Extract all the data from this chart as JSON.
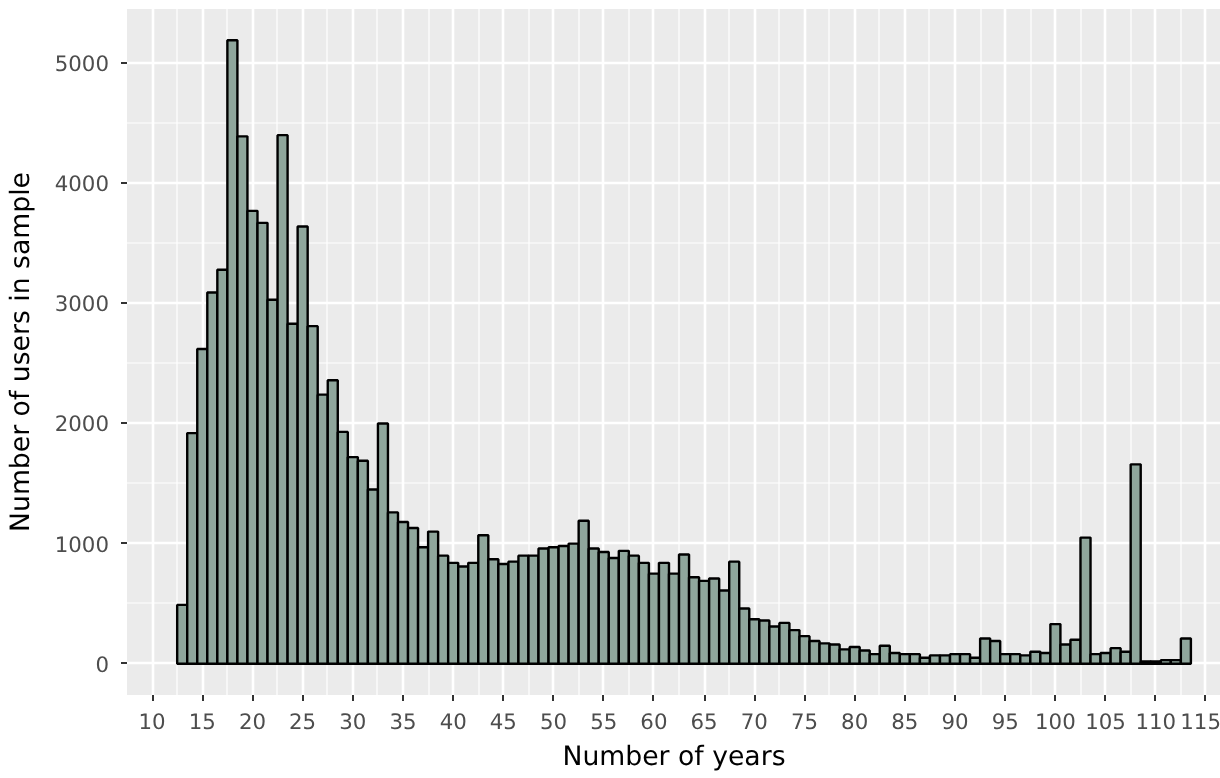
{
  "chart_data": {
    "type": "histogram",
    "xlabel": "Number of years",
    "ylabel": "Number of users in sample",
    "bins": [
      12.5,
      13.5,
      14.5,
      15.5,
      16.5,
      17.5,
      18.5,
      19.5,
      20.5,
      21.5,
      22.5,
      23.5,
      24.5,
      25.5,
      26.5,
      27.5,
      28.5,
      29.5,
      30.5,
      31.5,
      32.5,
      33.5,
      34.5,
      35.5,
      36.5,
      37.5,
      38.5,
      39.5,
      40.5,
      41.5,
      42.5,
      43.5,
      44.5,
      45.5,
      46.5,
      47.5,
      48.5,
      49.5,
      50.5,
      51.5,
      52.5,
      53.5,
      54.5,
      55.5,
      56.5,
      57.5,
      58.5,
      59.5,
      60.5,
      61.5,
      62.5,
      63.5,
      64.5,
      65.5,
      66.5,
      67.5,
      68.5,
      69.5,
      70.5,
      71.5,
      72.5,
      73.5,
      74.5,
      75.5,
      76.5,
      77.5,
      78.5,
      79.5,
      80.5,
      81.5,
      82.5,
      83.5,
      84.5,
      85.5,
      86.5,
      87.5,
      88.5,
      89.5,
      90.5,
      91.5,
      92.5,
      93.5,
      94.5,
      95.5,
      96.5,
      97.5,
      98.5,
      99.5,
      100.5,
      101.5,
      102.5,
      103.5,
      104.5,
      105.5,
      106.5,
      107.5,
      108.5,
      109.5,
      110.5,
      111.5,
      112.5,
      113.5
    ],
    "values": [
      490,
      1920,
      2620,
      3090,
      3280,
      5190,
      4390,
      3770,
      3670,
      3030,
      4400,
      2830,
      3640,
      2810,
      2240,
      2360,
      1930,
      1720,
      1690,
      1450,
      2000,
      1260,
      1180,
      1130,
      970,
      1100,
      900,
      840,
      810,
      840,
      1070,
      870,
      830,
      850,
      900,
      900,
      960,
      970,
      980,
      1000,
      1190,
      960,
      930,
      880,
      940,
      900,
      840,
      750,
      840,
      750,
      910,
      720,
      690,
      710,
      610,
      850,
      460,
      370,
      360,
      310,
      340,
      280,
      230,
      190,
      170,
      160,
      120,
      140,
      110,
      80,
      150,
      90,
      80,
      80,
      50,
      70,
      70,
      80,
      80,
      50,
      210,
      190,
      80,
      80,
      70,
      100,
      90,
      330,
      160,
      200,
      1050,
      80,
      90,
      130,
      100,
      1660,
      20,
      20,
      30,
      30,
      210
    ],
    "color": "#8fa69c",
    "xlim": [
      7.5,
      116.5
    ],
    "ylim": [
      -260,
      5450
    ],
    "xticks": [
      10,
      15,
      20,
      25,
      30,
      35,
      40,
      45,
      50,
      55,
      60,
      65,
      70,
      75,
      80,
      85,
      90,
      95,
      100,
      105,
      110,
      115
    ],
    "yticks": [
      0,
      1000,
      2000,
      3000,
      4000,
      5000
    ],
    "grid": true
  }
}
